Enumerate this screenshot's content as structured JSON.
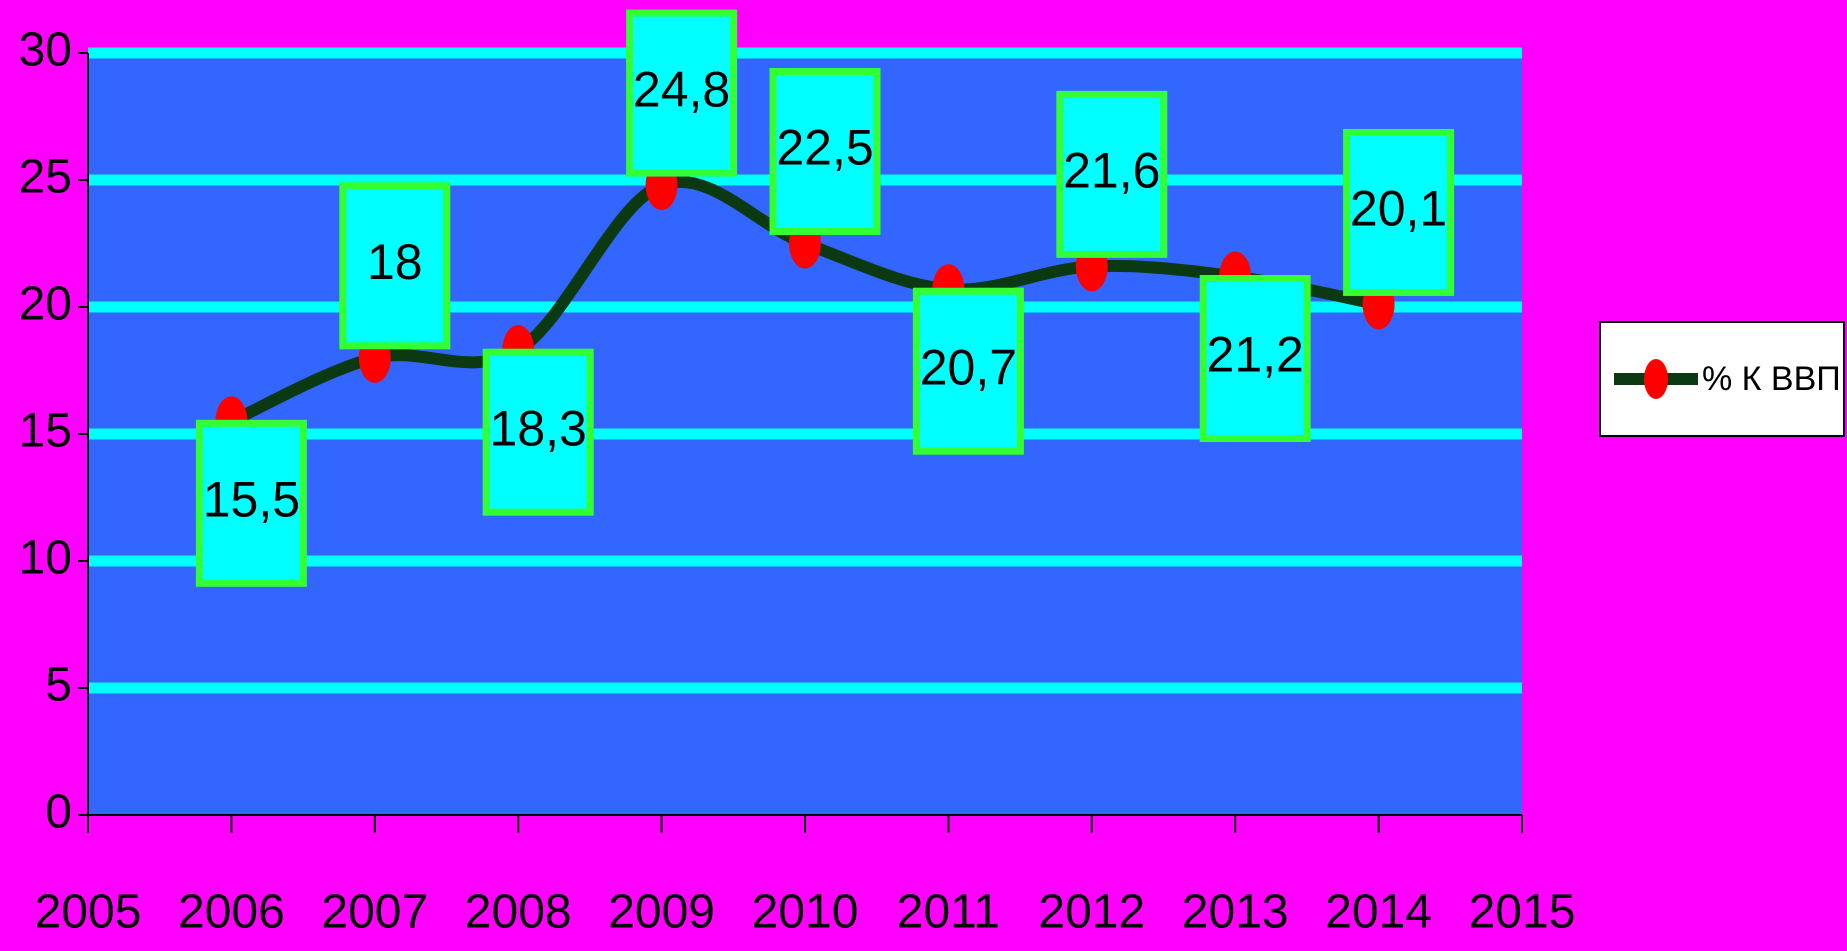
{
  "chart_data": {
    "type": "line",
    "x": [
      2006,
      2007,
      2008,
      2009,
      2010,
      2011,
      2012,
      2013,
      2014
    ],
    "series": [
      {
        "name": "% К ВВП",
        "color": "#0b3a12",
        "marker_color": "#ff0000",
        "values": [
          15.5,
          18,
          18.3,
          24.8,
          22.5,
          20.7,
          21.6,
          21.2,
          20.1
        ],
        "value_labels": [
          "15,5",
          "18",
          "18,3",
          "24,8",
          "22,5",
          "20,7",
          "21,6",
          "21,2",
          "20,1"
        ]
      }
    ],
    "xlim": [
      2005,
      2015
    ],
    "xticks": [
      2005,
      2006,
      2007,
      2008,
      2009,
      2010,
      2011,
      2012,
      2013,
      2014,
      2015
    ],
    "ylim": [
      0,
      30
    ],
    "yticks": [
      0,
      5,
      10,
      15,
      20,
      25,
      30
    ],
    "grid": true,
    "legend": "right",
    "background": "#ff00ff",
    "plot_background": "#3366ff",
    "grid_color": "#00ffff"
  }
}
